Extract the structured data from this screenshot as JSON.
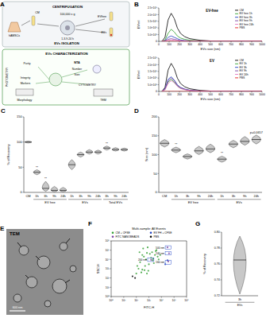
{
  "diagram": {
    "panel": "A",
    "nodes": [
      {
        "label": "CENTRIFUGATION"
      },
      {
        "label": "100,000 x g"
      },
      {
        "label": "CM"
      },
      {
        "label": "hAMSCs"
      },
      {
        "label": "EVs"
      },
      {
        "label": "EVfree"
      },
      {
        "label": "EVs ISOLATION"
      },
      {
        "label": "EVs CHARACTERIZATION"
      },
      {
        "label": "NTA"
      },
      {
        "label": "Number"
      },
      {
        "label": "Size"
      },
      {
        "label": "Purity"
      },
      {
        "label": "Integrity"
      },
      {
        "label": "Markers"
      },
      {
        "label": "Morphology"
      },
      {
        "label": "CYTOMETRY"
      },
      {
        "label": "TEM"
      },
      {
        "label": "PHOTOMETRY"
      },
      {
        "label": "1-3-9-24 h"
      }
    ]
  },
  "image": {
    "panel": "E",
    "title": "TEM",
    "scale_bar": "600 nm"
  },
  "chart_data": [
    {
      "panel": "B",
      "type": "line",
      "title": "EV-free",
      "x_label": "EVs size (nm)",
      "y_label": "EV/ml",
      "x": [
        30,
        60,
        90,
        120,
        150,
        180,
        210,
        250,
        300,
        400,
        500,
        700,
        1000
      ],
      "xlim": [
        0,
        1000
      ],
      "xticks": [
        0,
        100,
        200,
        300,
        400,
        500,
        600,
        700,
        800,
        900,
        1000
      ],
      "ylim": [
        0,
        2500000000
      ],
      "yticks": [
        0,
        {
          "value": 500000000,
          "label": "5.0×10⁸"
        },
        {
          "value": 1000000000,
          "label": "1.0×10⁹"
        },
        {
          "value": 1500000000,
          "label": "1.5×10⁹"
        },
        {
          "value": 2000000000,
          "label": "2.0×10⁹"
        },
        {
          "value": 2500000000,
          "label": "2.5×10⁹"
        }
      ],
      "legend": "upper right",
      "series": [
        {
          "name": "CM",
          "color": "#000000",
          "values": [
            0,
            300000000,
            1600000000,
            2100000000,
            1700000000,
            1000000000,
            600000000,
            350000000,
            200000000,
            80000000,
            30000000,
            10000000,
            0
          ]
        },
        {
          "name": "EV free 1h",
          "color": "#2ca02c",
          "values": [
            0,
            100000000,
            600000000,
            900000000,
            700000000,
            400000000,
            250000000,
            150000000,
            80000000,
            30000000,
            10000000,
            0,
            0
          ]
        },
        {
          "name": "EV free 3h",
          "color": "#1f3fbf",
          "values": [
            0,
            50000000,
            300000000,
            400000000,
            300000000,
            200000000,
            100000000,
            60000000,
            30000000,
            10000000,
            0,
            0,
            0
          ]
        },
        {
          "name": "EV free 9h",
          "color": "#7b3fa0",
          "values": [
            0,
            20000000,
            150000000,
            200000000,
            150000000,
            100000000,
            50000000,
            30000000,
            10000000,
            0,
            0,
            0,
            0
          ]
        },
        {
          "name": "EV free 24h",
          "color": "#e377c2",
          "values": [
            0,
            10000000,
            70000000,
            100000000,
            80000000,
            50000000,
            30000000,
            10000000,
            0,
            0,
            0,
            0,
            0
          ]
        },
        {
          "name": "PBS",
          "color": "#e41a1c",
          "values": [
            0,
            0,
            0,
            0,
            0,
            0,
            0,
            0,
            0,
            0,
            0,
            0,
            0
          ]
        }
      ]
    },
    {
      "type": "line",
      "title": "EV",
      "x_label": "EVs size (nm)",
      "y_label": "EV/ml",
      "x": [
        30,
        60,
        90,
        120,
        150,
        180,
        210,
        250,
        300,
        400,
        500,
        700,
        1000
      ],
      "xlim": [
        0,
        1000
      ],
      "xticks": [
        0,
        100,
        200,
        300,
        400,
        500,
        600,
        700,
        800,
        900,
        1000
      ],
      "ylim": [
        0,
        2500000000
      ],
      "yticks": [
        0,
        {
          "value": 500000000,
          "label": "5.0×10⁸"
        },
        {
          "value": 1000000000,
          "label": "1.0×10⁹"
        },
        {
          "value": 1500000000,
          "label": "1.5×10⁹"
        },
        {
          "value": 2000000000,
          "label": "2.0×10⁹"
        },
        {
          "value": 2500000000,
          "label": "2.5×10⁹"
        }
      ],
      "legend": "upper right",
      "series": [
        {
          "name": "CM",
          "color": "#000000",
          "values": [
            0,
            300000000,
            1600000000,
            2100000000,
            1700000000,
            1000000000,
            600000000,
            350000000,
            200000000,
            80000000,
            30000000,
            10000000,
            0
          ]
        },
        {
          "name": "EV 1h",
          "color": "#2ca02c",
          "values": [
            0,
            150000000,
            700000000,
            900000000,
            700000000,
            400000000,
            250000000,
            150000000,
            80000000,
            30000000,
            10000000,
            0,
            0
          ]
        },
        {
          "name": "EV 3h",
          "color": "#1f3fbf",
          "values": [
            0,
            200000000,
            900000000,
            1100000000,
            850000000,
            500000000,
            300000000,
            180000000,
            90000000,
            30000000,
            10000000,
            0,
            0
          ]
        },
        {
          "name": "EV 9h",
          "color": "#7b3fa0",
          "values": [
            0,
            180000000,
            800000000,
            1000000000,
            800000000,
            450000000,
            280000000,
            160000000,
            80000000,
            30000000,
            10000000,
            0,
            0
          ]
        },
        {
          "name": "EV 24h",
          "color": "#e377c2",
          "values": [
            0,
            120000000,
            600000000,
            800000000,
            650000000,
            380000000,
            220000000,
            130000000,
            70000000,
            25000000,
            10000000,
            0,
            0
          ]
        },
        {
          "name": "PBS",
          "color": "#e41a1c",
          "values": [
            0,
            0,
            0,
            0,
            0,
            0,
            0,
            0,
            0,
            0,
            0,
            0,
            0
          ]
        }
      ]
    },
    {
      "panel": "C",
      "type": "violin",
      "y_label": "% of Recovery",
      "color": "#c8c8c8",
      "categories": [
        "CM",
        "1h",
        "3h",
        "9h",
        "24h",
        "1h",
        "3h",
        "9h",
        "24h",
        "3h",
        "9h",
        "24h"
      ],
      "values": [
        100,
        40,
        8,
        4,
        4,
        55,
        75,
        80,
        80,
        88,
        85,
        85
      ],
      "min": [
        98,
        35,
        2,
        1,
        1,
        45,
        70,
        76,
        76,
        84,
        82,
        82
      ],
      "max": [
        102,
        45,
        22,
        12,
        10,
        65,
        80,
        85,
        84,
        92,
        89,
        88
      ],
      "ylim": [
        0,
        150
      ],
      "yticks": [
        0,
        50,
        100,
        150
      ],
      "groups": [
        {
          "label": "EV free",
          "from": 1,
          "to": 4
        },
        {
          "label": "EVs",
          "from": 5,
          "to": 8
        },
        {
          "label": "Total EVs",
          "from": 9,
          "to": 11
        }
      ],
      "annotations": [
        {
          "index": 1,
          "text": "**"
        },
        {
          "index": 2,
          "text": "**"
        },
        {
          "index": 9,
          "text": "**"
        }
      ]
    },
    {
      "panel": "D",
      "type": "violin",
      "y_label": "Size (nm)",
      "color": "#c8c8c8",
      "categories": [
        "CM",
        "1h",
        "3h",
        "9h",
        "24h",
        "1h",
        "3h",
        "9h",
        "24h"
      ],
      "values": [
        130,
        112,
        95,
        110,
        115,
        88,
        128,
        135,
        140
      ],
      "min": [
        120,
        105,
        88,
        100,
        105,
        80,
        118,
        125,
        128
      ],
      "max": [
        140,
        120,
        102,
        122,
        128,
        96,
        138,
        148,
        152
      ],
      "ylim": [
        0,
        200
      ],
      "yticks": [
        0,
        50,
        100,
        150,
        200
      ],
      "groups": [
        {
          "label": "EV free",
          "from": 1,
          "to": 4
        },
        {
          "label": "EVs",
          "from": 5,
          "to": 8
        }
      ],
      "annotations": [
        {
          "index": 1,
          "text": "**"
        },
        {
          "index": 5,
          "text": "**"
        },
        {
          "index": 8,
          "text": "p=0.0657"
        }
      ]
    },
    {
      "panel": "F",
      "type": "scatter",
      "title": "Multi-sample: All Events",
      "x_label": "FITC-H",
      "y_label": "SSC-H",
      "log": true,
      "xlim": [
        1,
        1000000
      ],
      "xticks": [
        {
          "value": 1,
          "label": "10⁰"
        },
        {
          "value": 10,
          "label": "10¹"
        },
        {
          "value": 100,
          "label": "10²"
        },
        {
          "value": 1000,
          "label": "10³"
        },
        {
          "value": 10000,
          "label": "10⁴"
        },
        {
          "value": 100000,
          "label": "10⁵"
        },
        {
          "value": 1000000,
          "label": "10⁶"
        }
      ],
      "ylim": [
        1,
        1000000
      ],
      "yticks": [
        {
          "value": 1,
          "label": "10⁰"
        },
        {
          "value": 10,
          "label": "10¹"
        },
        {
          "value": 100,
          "label": "10²"
        },
        {
          "value": 1000,
          "label": "10³"
        },
        {
          "value": 10000,
          "label": "10⁴"
        },
        {
          "value": 100000,
          "label": "10⁵"
        },
        {
          "value": 1000000,
          "label": "10⁶"
        }
      ],
      "legend": "upper left",
      "series": [
        {
          "name": "CM + CFSE",
          "color": "#2e9e2e",
          "x": [
            100,
            150,
            200,
            300,
            400,
            500,
            700,
            1000,
            1500,
            2000,
            3000,
            4000,
            5000,
            120,
            250,
            600,
            900,
            1800,
            2500,
            350,
            800,
            1200,
            3500,
            6000,
            180,
            450,
            2200,
            8000,
            300,
            700
          ],
          "values": [
            300,
            1000,
            5000,
            800,
            20000,
            2000,
            50000,
            3000,
            15000,
            8000,
            30000,
            100000,
            20000,
            2000,
            400,
            10000,
            600,
            60000,
            4000,
            150000,
            200000,
            40000,
            80000,
            10000,
            60000,
            700,
            12000,
            30000,
            30000,
            300
          ]
        },
        {
          "name": "EV FH + CFSE",
          "color": "#1f3fbf",
          "x": [
            20000,
            30000
          ],
          "values": [
            3000,
            8000
          ]
        },
        {
          "name": "FITC NANOBEADS",
          "color": "#7b3fa0",
          "x": [
            30000,
            40000,
            35000,
            1500
          ],
          "values": [
            200000,
            45000,
            6000,
            9000
          ]
        },
        {
          "name": "PBS",
          "color": "#000000",
          "x": [
            50,
            80
          ],
          "values": [
            150,
            100
          ]
        }
      ],
      "gates": [
        {
          "label": "500 nm",
          "x": [
            20000,
            60000
          ],
          "y": [
            120000,
            300000
          ]
        },
        {
          "label": "240 nm",
          "x": [
            20000,
            60000
          ],
          "y": [
            30000,
            70000
          ]
        },
        {
          "label": "200 nm",
          "x": [
            800,
            2500
          ],
          "y": [
            6000,
            15000
          ]
        },
        {
          "label": "160 nm",
          "x": [
            20000,
            60000
          ],
          "y": [
            3000,
            8000
          ]
        }
      ]
    },
    {
      "panel": "G",
      "type": "violin",
      "y_label": "% of Recovery",
      "color": "#c8c8c8",
      "categories": [
        "3h"
      ],
      "values": [
        0.765
      ],
      "min": [
        0.722
      ],
      "max": [
        0.795
      ],
      "ylim": [
        0.72,
        0.8
      ],
      "yticks": [
        0.72,
        0.74,
        0.76,
        0.78,
        {
          "value": 0.8,
          "label": "0.80"
        }
      ],
      "groups": [
        {
          "label": "EVs",
          "from": 0,
          "to": 0
        }
      ]
    }
  ]
}
